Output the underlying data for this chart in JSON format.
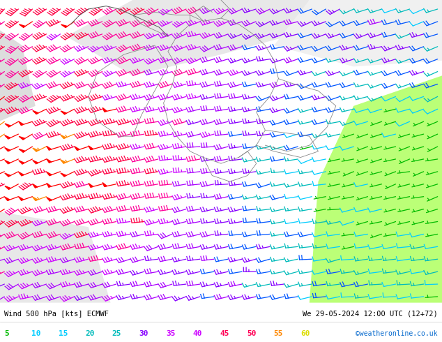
{
  "title_left": "Wind 500 hPa [kts] ECMWF",
  "title_right": "We 29-05-2024 12:00 UTC (12+72)",
  "credit": "©weatheronline.co.uk",
  "legend_values": [
    5,
    10,
    15,
    20,
    25,
    30,
    35,
    40,
    45,
    50,
    55,
    60
  ],
  "legend_colors": [
    "#00bb00",
    "#00ccff",
    "#00ccff",
    "#00bbbb",
    "#00bbbb",
    "#8800ff",
    "#cc00ff",
    "#cc00ff",
    "#ff0055",
    "#ff0055",
    "#ff8800",
    "#dddd00"
  ],
  "figsize": [
    6.34,
    4.9
  ],
  "dpi": 100,
  "bg_white": "#ffffff",
  "bg_green_light": "#ccff88",
  "bg_green_mid": "#aaee55",
  "bg_grey": "#e0e0e0",
  "border_color": "#888888",
  "bottom_bar_height": 0.115,
  "nx": 32,
  "ny": 24,
  "lon_min": 2.0,
  "lon_max": 22.0,
  "lat_min": 44.5,
  "lat_max": 57.5
}
